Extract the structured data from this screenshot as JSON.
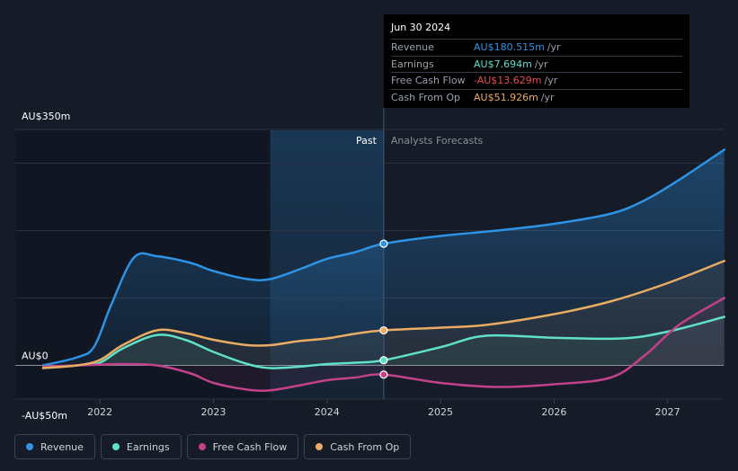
{
  "chart_data": {
    "type": "area",
    "y_axis": {
      "top_label": "AU$350m",
      "zero_label": "AU$0",
      "bottom_label": "-AU$50m",
      "ylim": [
        -50,
        350
      ]
    },
    "x_ticks": [
      "2022",
      "2023",
      "2024",
      "2025",
      "2026",
      "2027"
    ],
    "past_label": "Past",
    "forecast_label": "Analysts Forecasts",
    "past_end_x": 2024.5,
    "highlight_start_x": 2023.5,
    "series": [
      {
        "name": "Revenue",
        "color": "#2e93e4",
        "fill": true,
        "points": [
          [
            2021.5,
            0
          ],
          [
            2021.8,
            12
          ],
          [
            2021.95,
            28
          ],
          [
            2022.1,
            90
          ],
          [
            2022.3,
            160
          ],
          [
            2022.5,
            162
          ],
          [
            2022.8,
            152
          ],
          [
            2023.0,
            140
          ],
          [
            2023.3,
            128
          ],
          [
            2023.5,
            128
          ],
          [
            2023.75,
            142
          ],
          [
            2024.0,
            158
          ],
          [
            2024.25,
            168
          ],
          [
            2024.5,
            180.515
          ],
          [
            2025.0,
            192
          ],
          [
            2025.5,
            200
          ],
          [
            2026.0,
            210
          ],
          [
            2026.5,
            225
          ],
          [
            2026.8,
            245
          ],
          [
            2027.1,
            275
          ],
          [
            2027.5,
            320
          ]
        ]
      },
      {
        "name": "Earnings",
        "color": "#5fe0c7",
        "fill": false,
        "points": [
          [
            2021.5,
            -4
          ],
          [
            2021.8,
            0
          ],
          [
            2022.0,
            4
          ],
          [
            2022.2,
            25
          ],
          [
            2022.5,
            45
          ],
          [
            2022.75,
            38
          ],
          [
            2023.0,
            20
          ],
          [
            2023.3,
            2
          ],
          [
            2023.5,
            -4
          ],
          [
            2023.75,
            -2
          ],
          [
            2024.0,
            2
          ],
          [
            2024.25,
            4
          ],
          [
            2024.5,
            7.694
          ],
          [
            2025.0,
            27
          ],
          [
            2025.4,
            44
          ],
          [
            2026.0,
            41
          ],
          [
            2026.6,
            40
          ],
          [
            2027.0,
            50
          ],
          [
            2027.5,
            72
          ]
        ]
      },
      {
        "name": "Free Cash Flow",
        "color": "#c2428a",
        "fill": false,
        "points": [
          [
            2021.5,
            -2
          ],
          [
            2021.8,
            0
          ],
          [
            2022.0,
            1
          ],
          [
            2022.2,
            2
          ],
          [
            2022.5,
            0
          ],
          [
            2022.8,
            -12
          ],
          [
            2023.0,
            -26
          ],
          [
            2023.3,
            -36
          ],
          [
            2023.5,
            -37
          ],
          [
            2023.75,
            -30
          ],
          [
            2024.0,
            -22
          ],
          [
            2024.25,
            -18
          ],
          [
            2024.5,
            -13.629
          ],
          [
            2025.0,
            -26
          ],
          [
            2025.5,
            -32
          ],
          [
            2026.0,
            -28
          ],
          [
            2026.5,
            -18
          ],
          [
            2026.8,
            15
          ],
          [
            2027.1,
            60
          ],
          [
            2027.5,
            100
          ]
        ]
      },
      {
        "name": "Cash From Op",
        "color": "#e9ac62",
        "fill": false,
        "points": [
          [
            2021.5,
            -4
          ],
          [
            2021.8,
            0
          ],
          [
            2022.0,
            8
          ],
          [
            2022.2,
            30
          ],
          [
            2022.5,
            52
          ],
          [
            2022.75,
            48
          ],
          [
            2023.0,
            38
          ],
          [
            2023.3,
            30
          ],
          [
            2023.5,
            30
          ],
          [
            2023.75,
            36
          ],
          [
            2024.0,
            40
          ],
          [
            2024.25,
            47
          ],
          [
            2024.5,
            51.926
          ],
          [
            2025.0,
            56
          ],
          [
            2025.4,
            60
          ],
          [
            2026.0,
            76
          ],
          [
            2026.5,
            95
          ],
          [
            2027.0,
            122
          ],
          [
            2027.5,
            155
          ]
        ]
      }
    ]
  },
  "tooltip": {
    "date": "Jun 30 2024",
    "rows": [
      {
        "label": "Revenue",
        "value": "AU$180.515m",
        "unit": "/yr",
        "color": "#2e93e4"
      },
      {
        "label": "Earnings",
        "value": "AU$7.694m",
        "unit": "/yr",
        "color": "#5fe0c7"
      },
      {
        "label": "Free Cash Flow",
        "value": "-AU$13.629m",
        "unit": "/yr",
        "color": "#e84e4e"
      },
      {
        "label": "Cash From Op",
        "value": "AU$51.926m",
        "unit": "/yr",
        "color": "#e9ac62"
      }
    ]
  },
  "legend": [
    {
      "label": "Revenue",
      "color": "#2e93e4"
    },
    {
      "label": "Earnings",
      "color": "#5fe0c7"
    },
    {
      "label": "Free Cash Flow",
      "color": "#c2428a"
    },
    {
      "label": "Cash From Op",
      "color": "#e9ac62"
    }
  ]
}
